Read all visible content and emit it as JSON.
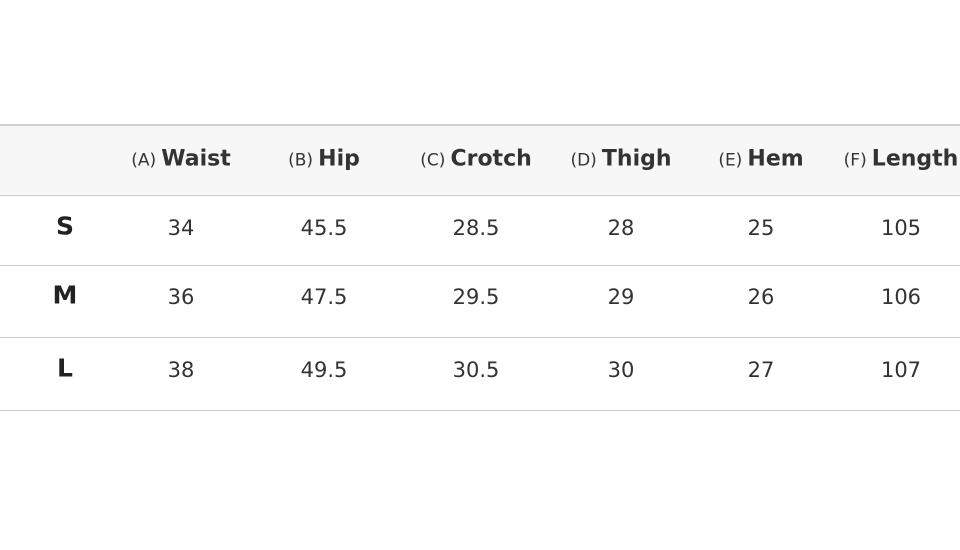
{
  "table": {
    "columns": [
      {
        "prefix": "(A)",
        "name": "Waist"
      },
      {
        "prefix": "(B)",
        "name": "Hip"
      },
      {
        "prefix": "(C)",
        "name": "Crotch"
      },
      {
        "prefix": "(D)",
        "name": "Thigh"
      },
      {
        "prefix": "(E)",
        "name": "Hem"
      },
      {
        "prefix": "(F)",
        "name": "Length"
      }
    ],
    "rows": [
      {
        "size": "S",
        "values": [
          "34",
          "45.5",
          "28.5",
          "28",
          "25",
          "105"
        ]
      },
      {
        "size": "M",
        "values": [
          "36",
          "47.5",
          "29.5",
          "29",
          "26",
          "106"
        ]
      },
      {
        "size": "L",
        "values": [
          "38",
          "49.5",
          "30.5",
          "30",
          "27",
          "107"
        ]
      }
    ]
  }
}
